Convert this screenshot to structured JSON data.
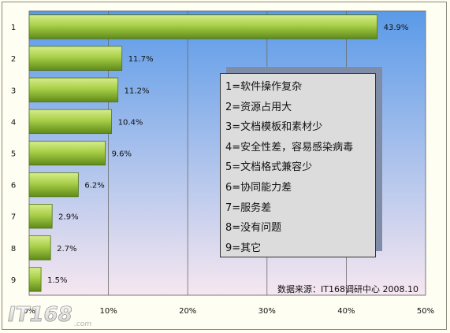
{
  "chart_data": {
    "type": "bar",
    "orientation": "horizontal",
    "categories": [
      "1",
      "2",
      "3",
      "4",
      "5",
      "6",
      "7",
      "8",
      "9"
    ],
    "values": [
      43.9,
      11.7,
      11.2,
      10.4,
      9.6,
      6.2,
      2.9,
      2.7,
      1.5
    ],
    "data_labels": [
      "43.9%",
      "11.7%",
      "11.2%",
      "10.4%",
      "9.6%",
      "6.2%",
      "2.9%",
      "2.7%",
      "1.5%"
    ],
    "x_ticks": [
      "0%",
      "10%",
      "20%",
      "30%",
      "40%",
      "50%"
    ],
    "xlim": [
      0,
      50
    ],
    "grid": true,
    "bar_color": "#8fba35",
    "plot_bg_top": "#5a9ae8",
    "plot_bg_bottom": "#f6e7f0",
    "legend": {
      "placement": "center-right",
      "items": [
        "1=软件操作复杂",
        "2=资源占用大",
        "3=文档模板和素材少",
        "4=安全性差，容易感染病毒",
        "5=文档格式兼容少",
        "6=协同能力差",
        "7=服务差",
        "8=没有问题",
        "9=其它"
      ]
    },
    "source": "数据来源：IT168调研中心 2008.10"
  },
  "logo": {
    "text": "IT168",
    "suffix": ".com"
  }
}
